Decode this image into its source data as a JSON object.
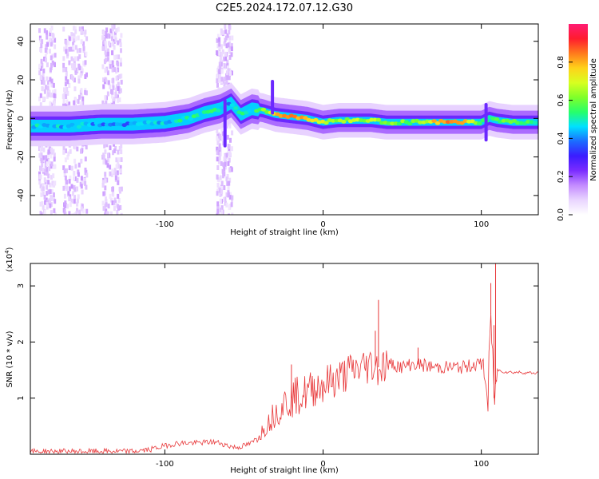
{
  "title": "C2E5.2024.172.07.12.G30",
  "colors": {
    "snr_line": "#e8383a",
    "axis": "#000000",
    "colormap": [
      "#ffffff",
      "#e9d5ff",
      "#c48cff",
      "#7b2cff",
      "#3b1cff",
      "#1c6cff",
      "#00e0ff",
      "#27ff6a",
      "#7fff2a",
      "#d8ff20",
      "#ffd21a",
      "#ff7a1c",
      "#ff1c2e",
      "#ff1c74"
    ]
  },
  "chart_data": [
    {
      "type": "heatmap",
      "xlabel": "Height of straight line (km)",
      "ylabel": "Frequency (Hz)",
      "xlim": [
        -185,
        136
      ],
      "ylim": [
        -50,
        49
      ],
      "xticks": [
        -100,
        0,
        100
      ],
      "yticks": [
        -40,
        -20,
        0,
        20,
        40
      ],
      "colorbar": {
        "label": "Normalized spectral amplitude",
        "range": [
          0,
          1
        ],
        "ticks": [
          "0.0",
          "0.2",
          "0.4",
          "0.6",
          "0.8"
        ]
      },
      "ridge": {
        "x": [
          -185,
          -160,
          -140,
          -120,
          -100,
          -85,
          -75,
          -65,
          -58,
          -52,
          -45,
          -38,
          -30,
          -20,
          -10,
          0,
          10,
          20,
          30,
          40,
          50,
          60,
          70,
          80,
          90,
          100,
          105,
          110,
          120,
          136
        ],
        "freq": [
          -4,
          -4,
          -3,
          -3,
          -2,
          0,
          3,
          5,
          8,
          2,
          5,
          4,
          2,
          1,
          0,
          -2,
          -1,
          -1,
          -1,
          -2,
          -2,
          -2,
          -2,
          -2,
          -2,
          -2,
          0,
          -1,
          -2,
          -2
        ],
        "amplitude": [
          0.45,
          0.45,
          0.4,
          0.4,
          0.45,
          0.5,
          0.5,
          0.5,
          0.4,
          0.5,
          0.5,
          0.6,
          0.75,
          0.85,
          0.8,
          0.7,
          0.65,
          0.65,
          0.65,
          0.6,
          0.6,
          0.6,
          0.75,
          0.9,
          0.75,
          0.6,
          0.45,
          0.55,
          0.6,
          0.55
        ]
      },
      "spurs": [
        {
          "x": -62,
          "freq_range": [
            -15,
            10
          ]
        },
        {
          "x": -32,
          "freq_range": [
            2,
            20
          ]
        },
        {
          "x": 103,
          "freq_range": [
            -12,
            8
          ]
        }
      ]
    },
    {
      "type": "line",
      "xlabel": "Height of straight line (km)",
      "ylabel": "SNR (10 * v/v)",
      "yscale_label": "(x10^4)",
      "xlim": [
        -185,
        136
      ],
      "ylim": [
        0,
        3.4
      ],
      "xticks": [
        -100,
        0,
        100
      ],
      "yticks": [
        1,
        2,
        3
      ],
      "series": [
        {
          "x": [
            -185,
            -160,
            -140,
            -120,
            -110,
            -100,
            -95,
            -90,
            -80,
            -70,
            -65,
            -60,
            -55,
            -50,
            -45,
            -40,
            -35,
            -30,
            -25,
            -20,
            -15,
            -10,
            -5,
            0,
            5,
            10,
            15,
            20,
            25,
            30,
            35,
            40,
            45,
            50,
            55,
            60,
            70,
            80,
            90,
            95,
            100,
            102,
            104,
            106,
            108,
            110,
            115,
            120,
            125,
            130,
            136
          ],
          "y": [
            0.05,
            0.05,
            0.05,
            0.05,
            0.08,
            0.15,
            0.18,
            0.2,
            0.2,
            0.22,
            0.2,
            0.15,
            0.12,
            0.15,
            0.2,
            0.35,
            0.55,
            0.75,
            0.9,
            1.0,
            1.05,
            1.1,
            1.2,
            1.25,
            1.3,
            1.35,
            1.45,
            1.5,
            1.55,
            1.6,
            1.55,
            1.6,
            1.6,
            1.55,
            1.6,
            1.6,
            1.55,
            1.55,
            1.55,
            1.6,
            1.6,
            1.55,
            0.8,
            2.5,
            1.0,
            1.5,
            1.47,
            1.46,
            1.46,
            1.45,
            1.45
          ]
        }
      ],
      "spikes": [
        {
          "x": -20,
          "y": 1.6
        },
        {
          "x": 35,
          "y": 2.75
        },
        {
          "x": 33,
          "y": 2.2
        },
        {
          "x": 60,
          "y": 1.9
        },
        {
          "x": 106,
          "y": 3.05
        },
        {
          "x": 109,
          "y": 3.4
        },
        {
          "x": 108,
          "y": 2.3
        }
      ]
    }
  ]
}
